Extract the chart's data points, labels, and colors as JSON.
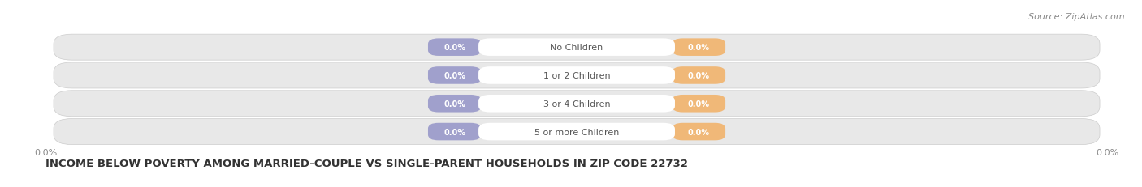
{
  "title": "INCOME BELOW POVERTY AMONG MARRIED-COUPLE VS SINGLE-PARENT HOUSEHOLDS IN ZIP CODE 22732",
  "source": "Source: ZipAtlas.com",
  "categories": [
    "No Children",
    "1 or 2 Children",
    "3 or 4 Children",
    "5 or more Children"
  ],
  "married_values": [
    0.0,
    0.0,
    0.0,
    0.0
  ],
  "single_values": [
    0.0,
    0.0,
    0.0,
    0.0
  ],
  "married_color": "#a0a0cc",
  "single_color": "#f0b878",
  "bg_color": "#ffffff",
  "row_color": "#e8e8e8",
  "row_border_color": "#cccccc",
  "label_color": "#555555",
  "title_color": "#333333",
  "value_label_color": "#ffffff",
  "axis_label_color": "#888888",
  "source_color": "#888888",
  "title_fontsize": 9.5,
  "label_fontsize": 8,
  "value_fontsize": 7,
  "tick_fontsize": 8,
  "source_fontsize": 8
}
